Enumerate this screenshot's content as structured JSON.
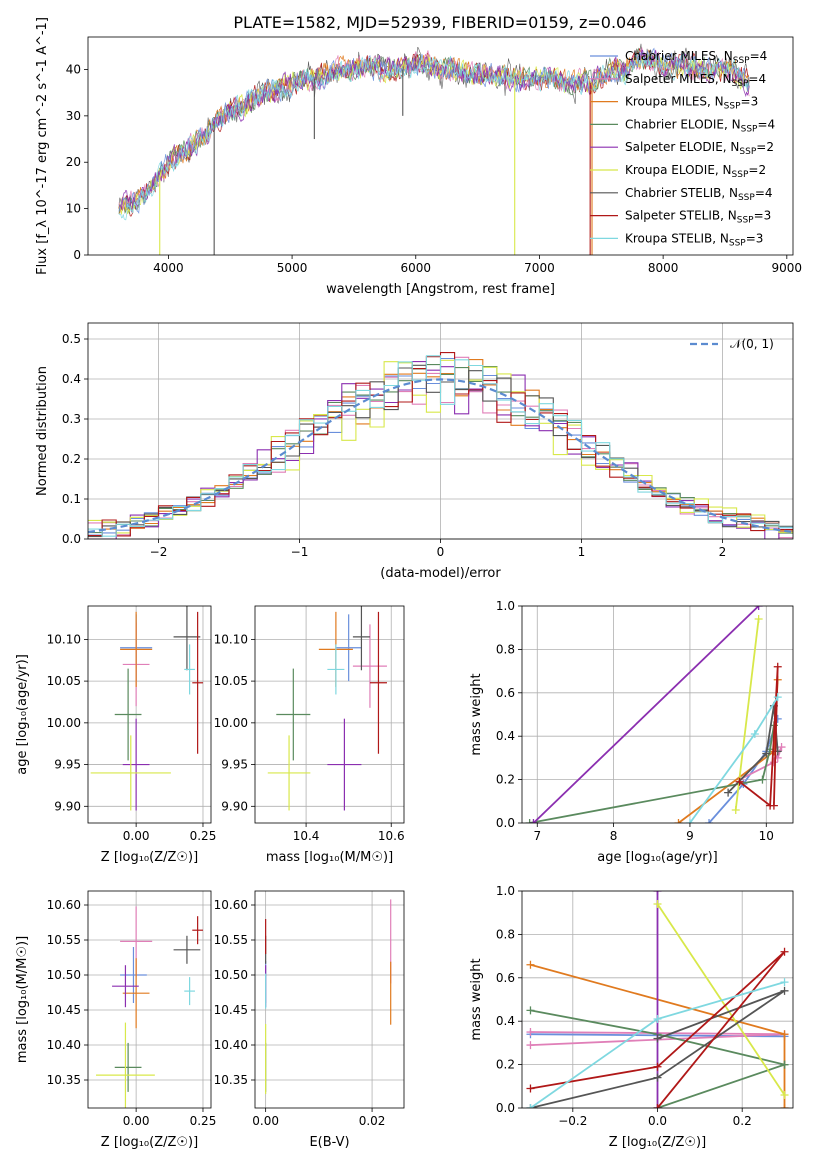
{
  "figure": {
    "title": "PLATE=1582, MJD=52939, FIBERID=0159, z=0.046"
  },
  "colors": {
    "Chabrier MILES": "#6a8fdc",
    "Salpeter MILES": "#e07fb8",
    "Kroupa MILES": "#e07a1f",
    "Chabrier ELODIE": "#5a8a5e",
    "Salpeter ELODIE": "#8b2fb0",
    "Kroupa ELODIE": "#d8e84a",
    "Chabrier STELIB": "#555555",
    "Salpeter STELIB": "#b01818",
    "Kroupa STELIB": "#7fd8e0"
  },
  "chart_data": [
    {
      "id": "spectrum",
      "type": "line",
      "title": "PLATE=1582, MJD=52939, FIBERID=0159, z=0.046",
      "xlabel": "wavelength [Angstrom, rest frame]",
      "ylabel": "Flux [f_λ 10^-17 erg cm^-2 s^-1 A^-1]",
      "xlim": [
        3350,
        9050
      ],
      "ylim": [
        0,
        47
      ],
      "xticks": [
        4000,
        5000,
        6000,
        7000,
        8000,
        9000
      ],
      "yticks": [
        0,
        10,
        20,
        30,
        40
      ],
      "legend_position": "top-right",
      "legend": [
        {
          "label": "Chabrier MILES, N",
          "sub": "SSP",
          "tail": "=4",
          "series": "Chabrier MILES"
        },
        {
          "label": "Salpeter MILES, N",
          "sub": "SSP",
          "tail": "=4",
          "series": "Salpeter MILES"
        },
        {
          "label": "Kroupa MILES, N",
          "sub": "SSP",
          "tail": "=3",
          "series": "Kroupa MILES"
        },
        {
          "label": "Chabrier ELODIE, N",
          "sub": "SSP",
          "tail": "=4",
          "series": "Chabrier ELODIE"
        },
        {
          "label": "Salpeter ELODIE, N",
          "sub": "SSP",
          "tail": "=2",
          "series": "Salpeter ELODIE"
        },
        {
          "label": "Kroupa ELODIE, N",
          "sub": "SSP",
          "tail": "=2",
          "series": "Kroupa ELODIE"
        },
        {
          "label": "Chabrier STELIB, N",
          "sub": "SSP",
          "tail": "=4",
          "series": "Chabrier STELIB"
        },
        {
          "label": "Salpeter STELIB, N",
          "sub": "SSP",
          "tail": "=3",
          "series": "Salpeter STELIB"
        },
        {
          "label": "Kroupa STELIB, N",
          "sub": "SSP",
          "tail": "=3",
          "series": "Kroupa STELIB"
        }
      ],
      "x": [
        3600,
        3700,
        3800,
        3900,
        4000,
        4100,
        4200,
        4300,
        4400,
        4500,
        4600,
        4700,
        4800,
        4900,
        5000,
        5100,
        5200,
        5300,
        5400,
        5500,
        5600,
        5700,
        5800,
        5900,
        6000,
        6100,
        6200,
        6300,
        6400,
        6500,
        6600,
        6700,
        6800,
        6900,
        7000,
        7100,
        7200,
        7300,
        7400,
        7500,
        7600,
        7700,
        7800,
        7900,
        8000,
        8100,
        8200,
        8300,
        8400,
        8500,
        8600,
        8700
      ],
      "y": [
        10,
        11,
        13,
        16,
        20,
        22,
        24,
        26,
        29,
        31,
        32,
        34,
        35,
        36,
        37,
        38,
        38,
        39,
        40,
        40,
        41,
        40,
        40,
        40,
        41,
        41,
        40,
        40,
        39,
        39,
        39,
        39,
        38,
        38,
        38,
        38,
        37,
        37,
        37,
        38,
        40,
        40,
        42,
        42,
        41,
        41,
        41,
        40,
        40,
        40,
        39,
        37
      ],
      "dips": [
        {
          "x": 3930,
          "y": 0,
          "series": "Kroupa ELODIE"
        },
        {
          "x": 4370,
          "y": 0,
          "series": "Chabrier STELIB"
        },
        {
          "x": 5180,
          "y": 25,
          "series": "Chabrier STELIB"
        },
        {
          "x": 5895,
          "y": 30,
          "series": "Chabrier STELIB"
        },
        {
          "x": 6800,
          "y": 0,
          "series": "Kroupa ELODIE"
        },
        {
          "x": 7410,
          "y": 0,
          "series": "Salpeter STELIB"
        },
        {
          "x": 7425,
          "y": 0,
          "series": "Kroupa MILES"
        }
      ]
    },
    {
      "id": "residuals",
      "type": "line",
      "xlabel": "(data-model)/error",
      "ylabel": "Normed distribution",
      "xlim": [
        -2.5,
        2.5
      ],
      "ylim": [
        0,
        0.54
      ],
      "xticks": [
        -2,
        -1,
        0,
        1,
        2
      ],
      "yticks": [
        0.0,
        0.1,
        0.2,
        0.3,
        0.4,
        0.5
      ],
      "grid": true,
      "legend_position": "top-right",
      "reference_label": "𝒩(0, 1)",
      "reference_color": "#5b8bd0",
      "bin_width": 0.1,
      "series": [
        {
          "key": "Chabrier MILES",
          "jitter": 0.06
        },
        {
          "key": "Salpeter MILES",
          "jitter": 0.08
        },
        {
          "key": "Kroupa MILES",
          "jitter": 0.07
        },
        {
          "key": "Chabrier ELODIE",
          "jitter": 0.06
        },
        {
          "key": "Salpeter ELODIE",
          "jitter": 0.09
        },
        {
          "key": "Kroupa ELODIE",
          "jitter": 0.1
        },
        {
          "key": "Chabrier STELIB",
          "jitter": 0.07
        },
        {
          "key": "Salpeter STELIB",
          "jitter": 0.08
        },
        {
          "key": "Kroupa STELIB",
          "jitter": 0.07
        }
      ]
    },
    {
      "id": "age_vs_Z",
      "type": "scatter",
      "xlabel": "Z [log₁₀(Z/Z☉)]",
      "ylabel": "age  [log₁₀(age/yr)]",
      "xlim": [
        -0.18,
        0.28
      ],
      "ylim": [
        9.88,
        10.14
      ],
      "xticks": [
        0.0,
        0.25
      ],
      "xtick_labels": [
        "0.00",
        "0.25"
      ],
      "yticks": [
        9.9,
        9.95,
        10.0,
        10.05,
        10.1
      ],
      "ytick_labels": [
        "9.90",
        "9.95",
        "10.00",
        "10.05",
        "10.10"
      ],
      "grid": true,
      "points": [
        {
          "series": "Chabrier MILES",
          "x": 0.0,
          "xerr": 0.06,
          "y": 10.09,
          "yerr": 0.04
        },
        {
          "series": "Salpeter MILES",
          "x": 0.0,
          "xerr": 0.05,
          "y": 10.07,
          "yerr": 0.05
        },
        {
          "series": "Kroupa MILES",
          "x": 0.0,
          "xerr": 0.06,
          "y": 10.088,
          "yerr": 0.045
        },
        {
          "series": "Chabrier ELODIE",
          "x": -0.03,
          "xerr": 0.05,
          "y": 10.01,
          "yerr": 0.055
        },
        {
          "series": "Salpeter ELODIE",
          "x": 0.0,
          "xerr": 0.05,
          "y": 9.95,
          "yerr": 0.055
        },
        {
          "series": "Kroupa ELODIE",
          "x": -0.02,
          "xerr": 0.15,
          "y": 9.94,
          "yerr": 0.045
        },
        {
          "series": "Chabrier STELIB",
          "x": 0.19,
          "xerr": 0.05,
          "y": 10.103,
          "yerr": 0.04
        },
        {
          "series": "Salpeter STELIB",
          "x": 0.23,
          "xerr": 0.02,
          "y": 10.048,
          "yerr": 0.085
        },
        {
          "series": "Kroupa STELIB",
          "x": 0.2,
          "xerr": 0.02,
          "y": 10.064,
          "yerr": 0.03
        }
      ]
    },
    {
      "id": "age_vs_mass",
      "type": "scatter",
      "xlabel": "mass [log₁₀(M/M☉)]",
      "ylabel": "",
      "xlim": [
        10.28,
        10.63
      ],
      "ylim": [
        9.88,
        10.14
      ],
      "xticks": [
        10.4,
        10.6
      ],
      "xtick_labels": [
        "10.4",
        "10.6"
      ],
      "yticks": [
        9.9,
        9.95,
        10.0,
        10.05,
        10.1
      ],
      "ytick_labels": [
        "9.90",
        "9.95",
        "10.00",
        "10.05",
        "10.10"
      ],
      "grid": true,
      "points": [
        {
          "series": "Chabrier MILES",
          "x": 10.5,
          "xerr": 0.03,
          "y": 10.09,
          "yerr": 0.04
        },
        {
          "series": "Salpeter MILES",
          "x": 10.55,
          "xerr": 0.04,
          "y": 10.068,
          "yerr": 0.05
        },
        {
          "series": "Kroupa MILES",
          "x": 10.47,
          "xerr": 0.04,
          "y": 10.088,
          "yerr": 0.045
        },
        {
          "series": "Chabrier ELODIE",
          "x": 10.37,
          "xerr": 0.04,
          "y": 10.01,
          "yerr": 0.055
        },
        {
          "series": "Salpeter ELODIE",
          "x": 10.49,
          "xerr": 0.04,
          "y": 9.95,
          "yerr": 0.055
        },
        {
          "series": "Kroupa ELODIE",
          "x": 10.36,
          "xerr": 0.05,
          "y": 9.94,
          "yerr": 0.045
        },
        {
          "series": "Chabrier STELIB",
          "x": 10.53,
          "xerr": 0.02,
          "y": 10.103,
          "yerr": 0.04
        },
        {
          "series": "Salpeter STELIB",
          "x": 10.57,
          "xerr": 0.02,
          "y": 10.048,
          "yerr": 0.085
        },
        {
          "series": "Kroupa STELIB",
          "x": 10.47,
          "xerr": 0.02,
          "y": 10.064,
          "yerr": 0.03
        }
      ]
    },
    {
      "id": "weight_vs_age",
      "type": "line",
      "xlabel": "age  [log₁₀(age/yr)]",
      "ylabel": "mass weight",
      "xlim": [
        6.8,
        10.35
      ],
      "ylim": [
        0.0,
        1.0
      ],
      "xticks": [
        7,
        8,
        9,
        10
      ],
      "yticks": [
        0.0,
        0.2,
        0.4,
        0.6,
        0.8,
        1.0
      ],
      "ytick_labels": [
        "0.0",
        "0.2",
        "0.4",
        "0.6",
        "0.8",
        "1.0"
      ],
      "grid": true,
      "series": [
        {
          "key": "Chabrier MILES",
          "x": [
            9.25,
            9.7,
            10.0,
            10.15
          ],
          "y": [
            0.0,
            0.18,
            0.33,
            0.48
          ]
        },
        {
          "key": "Salpeter MILES",
          "x": [
            9.65,
            10.1,
            10.2,
            10.15
          ],
          "y": [
            0.2,
            0.28,
            0.35,
            0.3
          ]
        },
        {
          "key": "Kroupa MILES",
          "x": [
            8.85,
            10.1,
            10.15
          ],
          "y": [
            0.0,
            0.33,
            0.66
          ]
        },
        {
          "key": "Chabrier ELODIE",
          "x": [
            6.9,
            9.95,
            10.05,
            10.1
          ],
          "y": [
            0.0,
            0.2,
            0.34,
            0.45
          ]
        },
        {
          "key": "Salpeter ELODIE",
          "x": [
            6.95,
            9.9
          ],
          "y": [
            0.0,
            1.0
          ]
        },
        {
          "key": "Kroupa ELODIE",
          "x": [
            9.6,
            9.9
          ],
          "y": [
            0.06,
            0.94
          ]
        },
        {
          "key": "Chabrier STELIB",
          "x": [
            9.5,
            10.0,
            10.1,
            10.15
          ],
          "y": [
            0.14,
            0.32,
            0.54,
            0.33
          ]
        },
        {
          "key": "Salpeter STELIB",
          "x": [
            9.65,
            10.05,
            10.15,
            10.1
          ],
          "y": [
            0.19,
            0.08,
            0.72,
            0.08
          ]
        },
        {
          "key": "Kroupa STELIB",
          "x": [
            9.0,
            9.85,
            10.15
          ],
          "y": [
            0.0,
            0.41,
            0.58
          ]
        }
      ]
    },
    {
      "id": "mass_vs_Z",
      "type": "scatter",
      "xlabel": "Z [log₁₀(Z/Z☉)]",
      "ylabel": "mass [log₁₀(M/M☉)]",
      "xlim": [
        -0.18,
        0.28
      ],
      "ylim": [
        10.31,
        10.62
      ],
      "xticks": [
        0.0,
        0.25
      ],
      "xtick_labels": [
        "0.00",
        "0.25"
      ],
      "yticks": [
        10.35,
        10.4,
        10.45,
        10.5,
        10.55,
        10.6
      ],
      "ytick_labels": [
        "10.35",
        "10.40",
        "10.45",
        "10.50",
        "10.55",
        "10.60"
      ],
      "grid": true,
      "points": [
        {
          "series": "Chabrier MILES",
          "x": -0.01,
          "xerr": 0.05,
          "y": 10.5,
          "yerr": 0.04
        },
        {
          "series": "Salpeter MILES",
          "x": 0.0,
          "xerr": 0.06,
          "y": 10.548,
          "yerr": 0.05
        },
        {
          "series": "Kroupa MILES",
          "x": 0.0,
          "xerr": 0.05,
          "y": 10.474,
          "yerr": 0.05
        },
        {
          "series": "Chabrier ELODIE",
          "x": -0.03,
          "xerr": 0.05,
          "y": 10.368,
          "yerr": 0.035
        },
        {
          "series": "Salpeter ELODIE",
          "x": -0.04,
          "xerr": 0.05,
          "y": 10.484,
          "yerr": 0.03
        },
        {
          "series": "Kroupa ELODIE",
          "x": -0.04,
          "xerr": 0.11,
          "y": 10.357,
          "yerr": 0.075
        },
        {
          "series": "Chabrier STELIB",
          "x": 0.19,
          "xerr": 0.05,
          "y": 10.536,
          "yerr": 0.02
        },
        {
          "series": "Salpeter STELIB",
          "x": 0.23,
          "xerr": 0.02,
          "y": 10.564,
          "yerr": 0.02
        },
        {
          "series": "Kroupa STELIB",
          "x": 0.2,
          "xerr": 0.02,
          "y": 10.477,
          "yerr": 0.02
        }
      ]
    },
    {
      "id": "mass_vs_EBV",
      "type": "scatter",
      "xlabel": "E(B-V)",
      "ylabel": "",
      "xlim": [
        -0.002,
        0.026
      ],
      "ylim": [
        10.31,
        10.62
      ],
      "xticks": [
        0.0,
        0.02
      ],
      "xtick_labels": [
        "0.00",
        "0.02"
      ],
      "yticks": [
        10.35,
        10.4,
        10.45,
        10.5,
        10.55,
        10.6
      ],
      "ytick_labels": [
        "10.35",
        "10.40",
        "10.45",
        "10.50",
        "10.55",
        "10.60"
      ],
      "grid": true,
      "points": [
        {
          "series": "Chabrier MILES",
          "x": 0.0,
          "xerr": 0.0,
          "y": 10.49,
          "yerr": 0.03
        },
        {
          "series": "Salpeter MILES",
          "x": 0.0235,
          "xerr": 0.0,
          "y": 10.548,
          "yerr": 0.06
        },
        {
          "series": "Kroupa MILES",
          "x": 0.0235,
          "xerr": 0.0,
          "y": 10.474,
          "yerr": 0.045
        },
        {
          "series": "Chabrier ELODIE",
          "x": 0.0,
          "xerr": 0.0,
          "y": 10.368,
          "yerr": 0.035
        },
        {
          "series": "Salpeter ELODIE",
          "x": 0.0,
          "xerr": 0.0,
          "y": 10.484,
          "yerr": 0.03
        },
        {
          "series": "Kroupa ELODIE",
          "x": 0.0,
          "xerr": 0.0,
          "y": 10.38,
          "yerr": 0.05
        },
        {
          "series": "Chabrier STELIB",
          "x": 0.0,
          "xerr": 0.0,
          "y": 10.536,
          "yerr": 0.02
        },
        {
          "series": "Salpeter STELIB",
          "x": 0.0,
          "xerr": 0.0,
          "y": 10.555,
          "yerr": 0.025
        },
        {
          "series": "Kroupa STELIB",
          "x": 0.0,
          "xerr": 0.0,
          "y": 10.477,
          "yerr": 0.025
        }
      ]
    },
    {
      "id": "weight_vs_Z",
      "type": "line",
      "xlabel": "Z [log₁₀(Z/Z☉)]",
      "ylabel": "mass weight",
      "xlim": [
        -0.32,
        0.32
      ],
      "ylim": [
        0.0,
        1.0
      ],
      "xticks": [
        -0.2,
        0.0,
        0.2
      ],
      "xtick_labels": [
        "−0.2",
        "0.0",
        "0.2"
      ],
      "yticks": [
        0.0,
        0.2,
        0.4,
        0.6,
        0.8,
        1.0
      ],
      "ytick_labels": [
        "0.0",
        "0.2",
        "0.4",
        "0.6",
        "0.8",
        "1.0"
      ],
      "grid": true,
      "series": [
        {
          "key": "Chabrier MILES",
          "x": [
            -0.3,
            0.3
          ],
          "y": [
            0.34,
            0.33
          ]
        },
        {
          "key": "Salpeter MILES",
          "x": [
            -0.3,
            0.3,
            -0.3
          ],
          "y": [
            0.35,
            0.34,
            0.29
          ]
        },
        {
          "key": "Kroupa MILES",
          "x": [
            -0.3,
            0.3,
            0.3
          ],
          "y": [
            0.66,
            0.34,
            0.0
          ]
        },
        {
          "key": "Chabrier ELODIE",
          "x": [
            -0.3,
            0.0,
            0.3,
            0.0,
            0.3
          ],
          "y": [
            0.45,
            0.34,
            0.2,
            0.0,
            0.2
          ]
        },
        {
          "key": "Salpeter ELODIE",
          "x": [
            0.0,
            0.0
          ],
          "y": [
            0.0,
            1.0
          ]
        },
        {
          "key": "Kroupa ELODIE",
          "x": [
            0.0,
            0.3
          ],
          "y": [
            0.94,
            0.06
          ]
        },
        {
          "key": "Chabrier STELIB",
          "x": [
            0.0,
            0.3,
            0.0,
            -0.3
          ],
          "y": [
            0.32,
            0.54,
            0.14,
            0.0
          ]
        },
        {
          "key": "Salpeter STELIB",
          "x": [
            -0.3,
            0.0,
            0.3,
            0.0
          ],
          "y": [
            0.09,
            0.19,
            0.72,
            0.0
          ]
        },
        {
          "key": "Kroupa STELIB",
          "x": [
            -0.3,
            0.0,
            0.3
          ],
          "y": [
            0.0,
            0.41,
            0.58
          ]
        }
      ]
    }
  ]
}
